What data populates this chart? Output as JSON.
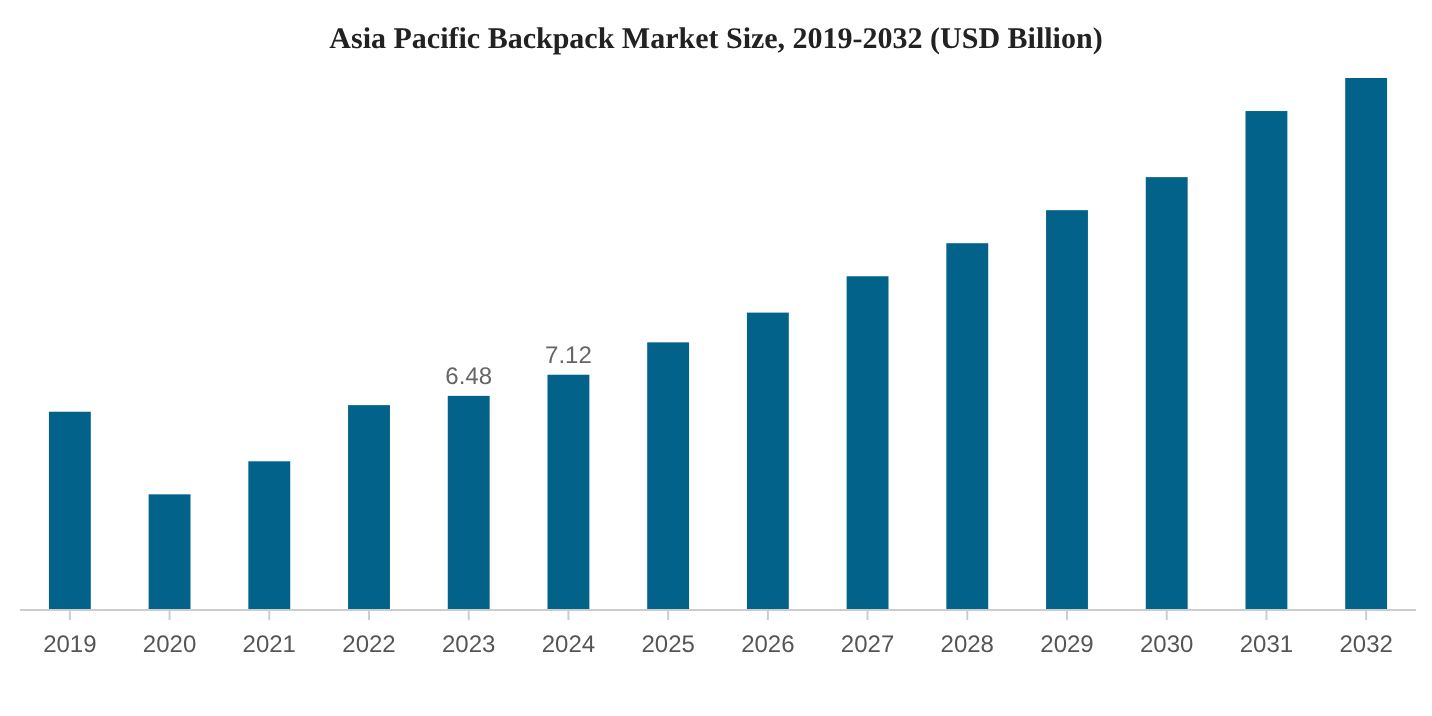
{
  "chart_data": {
    "type": "bar",
    "title": "Asia Pacific Backpack Market Size, 2019-2032 (USD Billion)",
    "categories": [
      "2019",
      "2020",
      "2021",
      "2022",
      "2023",
      "2024",
      "2025",
      "2026",
      "2027",
      "2028",
      "2029",
      "2030",
      "2031",
      "2032"
    ],
    "values": [
      6.0,
      3.5,
      4.5,
      6.2,
      6.48,
      7.12,
      8.1,
      9.0,
      10.1,
      11.1,
      12.1,
      13.1,
      15.1,
      16.1
    ],
    "value_labels": [
      null,
      null,
      null,
      null,
      "6.48",
      "7.12",
      null,
      null,
      null,
      null,
      null,
      null,
      null,
      null
    ],
    "color": "#03628a"
  }
}
